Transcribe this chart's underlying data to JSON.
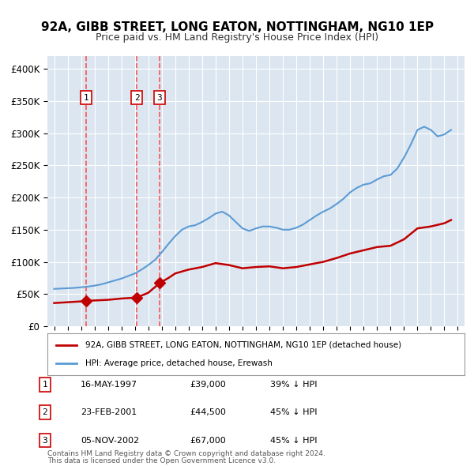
{
  "title": "92A, GIBB STREET, LONG EATON, NOTTINGHAM, NG10 1EP",
  "subtitle": "Price paid vs. HM Land Registry's House Price Index (HPI)",
  "legend_house": "92A, GIBB STREET, LONG EATON, NOTTINGHAM, NG10 1EP (detached house)",
  "legend_hpi": "HPI: Average price, detached house, Erewash",
  "footnote1": "Contains HM Land Registry data © Crown copyright and database right 2024.",
  "footnote2": "This data is licensed under the Open Government Licence v3.0.",
  "transactions": [
    {
      "label": "1",
      "date": "16-MAY-1997",
      "price": "£39,000",
      "hpi": "39% ↓ HPI",
      "year": 1997.37
    },
    {
      "label": "2",
      "date": "23-FEB-2001",
      "price": "£44,500",
      "hpi": "45% ↓ HPI",
      "year": 2001.14
    },
    {
      "label": "3",
      "date": "05-NOV-2002",
      "price": "£67,000",
      "hpi": "45% ↓ HPI",
      "year": 2002.84
    }
  ],
  "transaction_values": [
    39000,
    44500,
    67000
  ],
  "hpi_color": "#5b9bd5",
  "house_color": "#c00000",
  "vline_color": "#ff4444",
  "background_color": "#dce6f1",
  "plot_bg": "#dce6f1",
  "ylim": [
    0,
    420000
  ],
  "yticks": [
    0,
    50000,
    100000,
    150000,
    200000,
    250000,
    300000,
    350000,
    400000
  ],
  "ytick_labels": [
    "£0",
    "£50K",
    "£100K",
    "£150K",
    "£200K",
    "£250K",
    "£300K",
    "£350K",
    "£400K"
  ],
  "hpi_years": [
    1995,
    1995.5,
    1996,
    1996.5,
    1997,
    1997.5,
    1998,
    1998.5,
    1999,
    1999.5,
    2000,
    2000.5,
    2001,
    2001.5,
    2002,
    2002.5,
    2003,
    2003.5,
    2004,
    2004.5,
    2005,
    2005.5,
    2006,
    2006.5,
    2007,
    2007.5,
    2008,
    2008.5,
    2009,
    2009.5,
    2010,
    2010.5,
    2011,
    2011.5,
    2012,
    2012.5,
    2013,
    2013.5,
    2014,
    2014.5,
    2015,
    2015.5,
    2016,
    2016.5,
    2017,
    2017.5,
    2018,
    2018.5,
    2019,
    2019.5,
    2020,
    2020.5,
    2021,
    2021.5,
    2022,
    2022.5,
    2023,
    2023.5,
    2024,
    2024.5
  ],
  "hpi_values": [
    58000,
    58500,
    59000,
    59500,
    60500,
    61500,
    63000,
    65000,
    68000,
    71000,
    74000,
    78000,
    82000,
    88000,
    95000,
    103000,
    115000,
    128000,
    140000,
    150000,
    155000,
    157000,
    162000,
    168000,
    175000,
    178000,
    172000,
    162000,
    152000,
    148000,
    152000,
    155000,
    155000,
    153000,
    150000,
    150000,
    153000,
    158000,
    165000,
    172000,
    178000,
    183000,
    190000,
    198000,
    208000,
    215000,
    220000,
    222000,
    228000,
    233000,
    235000,
    245000,
    262000,
    282000,
    305000,
    310000,
    305000,
    295000,
    298000,
    305000
  ],
  "house_years": [
    1995,
    1997.37,
    1997.5,
    1998,
    1999,
    2000,
    2001.14,
    2002,
    2002.84,
    2003.5,
    2004,
    2005,
    2006,
    2007,
    2008,
    2009,
    2010,
    2011,
    2012,
    2013,
    2014,
    2015,
    2016,
    2017,
    2018,
    2019,
    2020,
    2021,
    2022,
    2023,
    2024,
    2024.5
  ],
  "house_values": [
    36000,
    39000,
    39500,
    40000,
    41000,
    43000,
    44500,
    52000,
    67000,
    75000,
    82000,
    88000,
    92000,
    98000,
    95000,
    90000,
    92000,
    93000,
    90000,
    92000,
    96000,
    100000,
    106000,
    113000,
    118000,
    123000,
    125000,
    135000,
    152000,
    155000,
    160000,
    165000
  ]
}
